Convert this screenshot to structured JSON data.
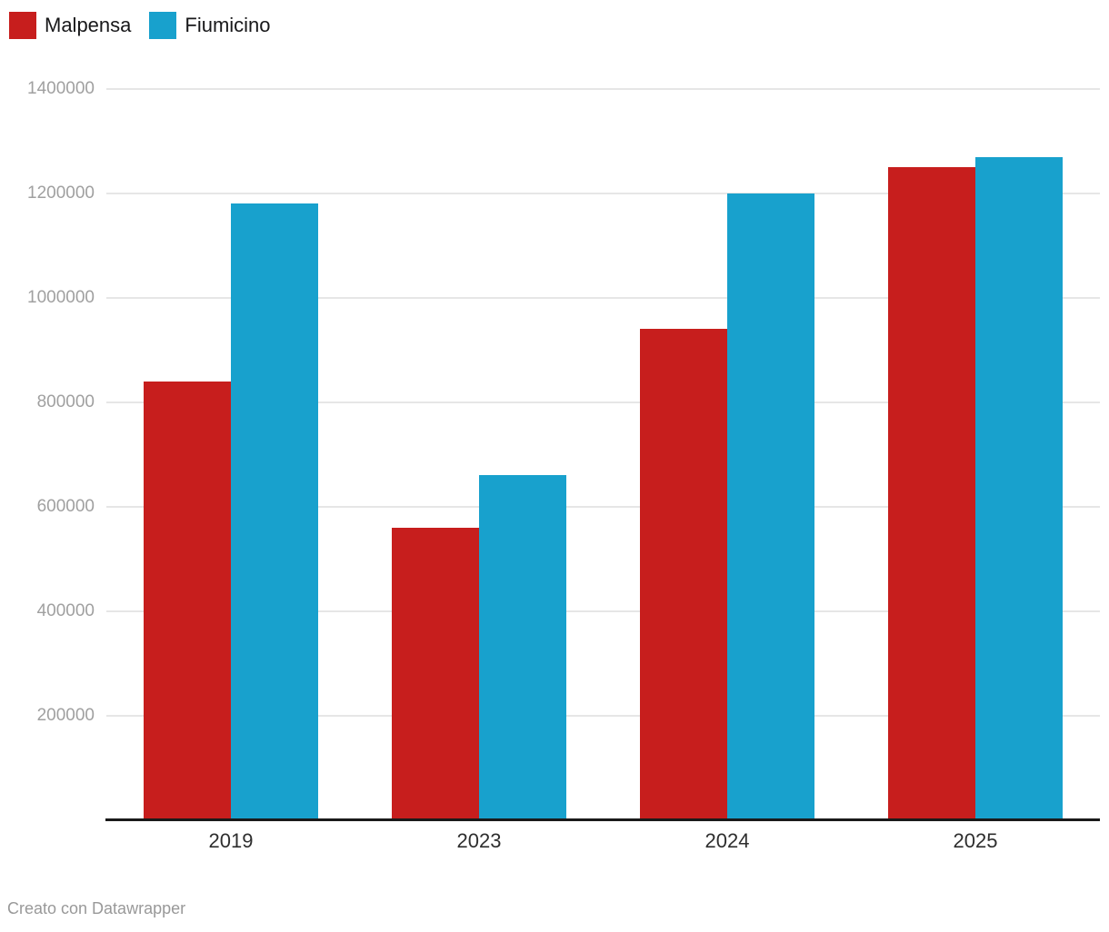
{
  "chart_data": {
    "type": "bar",
    "categories": [
      "2019",
      "2023",
      "2024",
      "2025"
    ],
    "series": [
      {
        "name": "Malpensa",
        "color": "#c71e1d",
        "values": [
          840000,
          560000,
          940000,
          1250000
        ]
      },
      {
        "name": "Fiumicino",
        "color": "#18a1cd",
        "values": [
          1180000,
          660000,
          1200000,
          1270000
        ]
      }
    ],
    "title": "",
    "xlabel": "",
    "ylabel": "",
    "ylim": [
      0,
      1400000
    ],
    "yticks": [
      200000,
      400000,
      600000,
      800000,
      1000000,
      1200000,
      1400000
    ],
    "grid": "horizontal",
    "legend_position": "top-left"
  },
  "footer": {
    "text": "Creato con Datawrapper"
  },
  "colors": {
    "background": "#ffffff",
    "grid": "#e6e6e6",
    "axis": "#1a1a1a",
    "y_tick_label": "#a0a0a0",
    "x_tick_label": "#2e2e2e",
    "legend_text": "#18181a",
    "footer_text": "#999999"
  }
}
